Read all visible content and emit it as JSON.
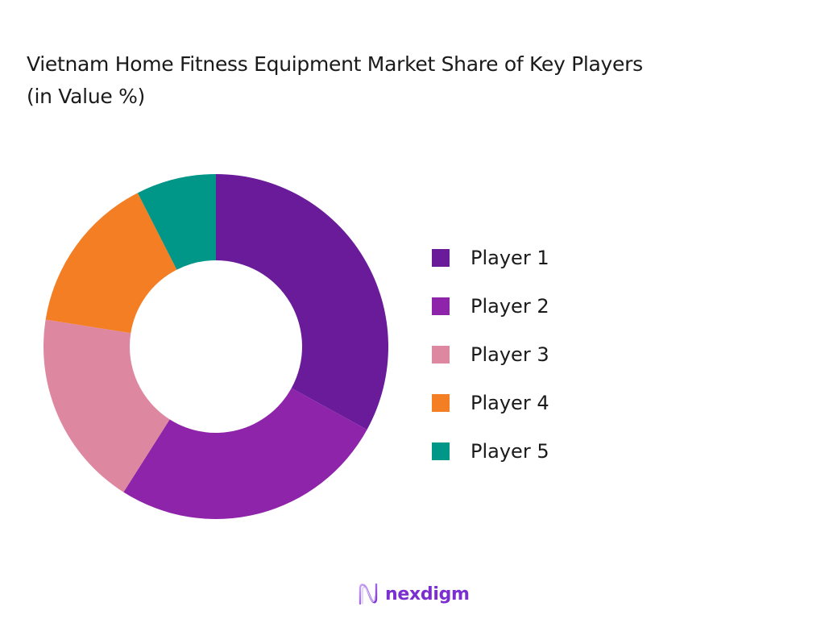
{
  "chart_data": {
    "type": "pie",
    "variant": "donut",
    "title": "Vietnam Home Fitness Equipment Market Share of Key Players (in Value %)",
    "categories": [
      "Player 1",
      "Player 2",
      "Player 3",
      "Player 4",
      "Player 5"
    ],
    "values": [
      33,
      26,
      18.5,
      15,
      7.5
    ],
    "colors": [
      "#6A1B9A",
      "#8E24AA",
      "#DE87A0",
      "#F47E24",
      "#009688"
    ],
    "legend_position": "right",
    "start_angle": "top, clockwise",
    "data_labels": false
  },
  "title": {
    "line1": "Vietnam Home Fitness Equipment Market Share of Key Players",
    "line2": "(in Value %)"
  },
  "legend": [
    {
      "label": "Player 1",
      "color": "#6A1B9A"
    },
    {
      "label": "Player 2",
      "color": "#8E24AA"
    },
    {
      "label": "Player 3",
      "color": "#DE87A0"
    },
    {
      "label": "Player 4",
      "color": "#F47E24"
    },
    {
      "label": "Player 5",
      "color": "#009688"
    }
  ],
  "brand": {
    "name": "nexdigm",
    "color": "#7B2FD0"
  }
}
